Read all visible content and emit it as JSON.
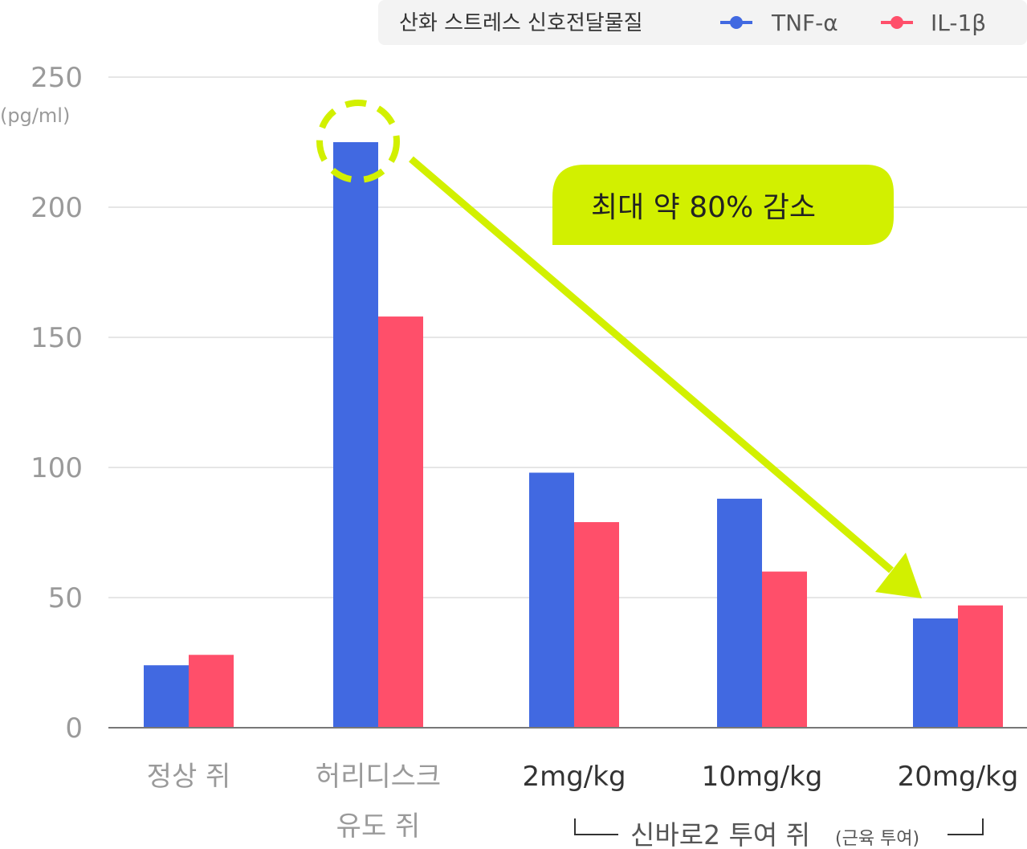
{
  "legend": {
    "title": "산화 스트레스 신호전달물질",
    "items": [
      {
        "label": "TNF-α",
        "color": "#4169e1"
      },
      {
        "label": "IL-1β",
        "color": "#ff4f6a"
      }
    ]
  },
  "y_axis": {
    "unit": "(pg/ml)",
    "ticks": [
      "0",
      "50",
      "100",
      "150",
      "200",
      "250"
    ]
  },
  "categories_display": [
    {
      "lines": [
        "정상 쥐"
      ],
      "style": "grey"
    },
    {
      "lines": [
        "허리디스크",
        "유도 쥐"
      ],
      "style": "grey"
    },
    {
      "lines": [
        "2mg/kg"
      ],
      "style": "dark"
    },
    {
      "lines": [
        "10mg/kg"
      ],
      "style": "dark"
    },
    {
      "lines": [
        "20mg/kg"
      ],
      "style": "dark"
    }
  ],
  "group_label": {
    "main": "신바로2 투여 쥐",
    "sub": "(근육 투여)"
  },
  "annotation": {
    "callout": "최대 약 80% 감소",
    "accent_color": "#d2f000"
  },
  "chart_data": {
    "type": "bar",
    "categories": [
      "정상 쥐",
      "허리디스크 유도 쥐",
      "2mg/kg",
      "10mg/kg",
      "20mg/kg"
    ],
    "series": [
      {
        "name": "TNF-α",
        "color": "#4169e1",
        "values": [
          24,
          225,
          98,
          88,
          42
        ]
      },
      {
        "name": "IL-1β",
        "color": "#ff4f6a",
        "values": [
          28,
          158,
          79,
          60,
          47
        ]
      }
    ],
    "ylim": [
      0,
      250
    ],
    "yticks": [
      0,
      50,
      100,
      150,
      200,
      250
    ],
    "ylabel": "(pg/ml)",
    "grid": true,
    "legend_position": "top-right"
  }
}
